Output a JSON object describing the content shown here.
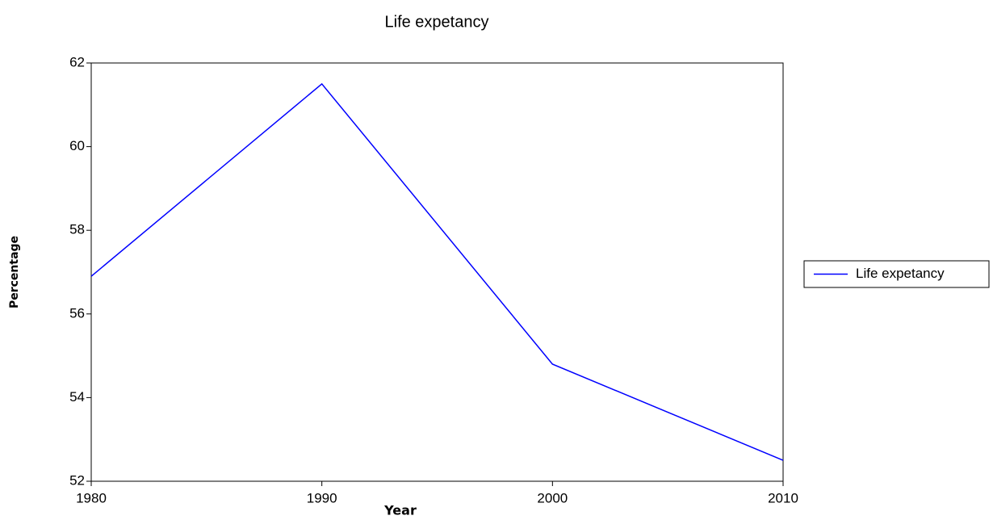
{
  "chart_data": {
    "type": "line",
    "title": "Life expetancy",
    "x_label": "Year",
    "y_label": "Percentage",
    "x": [
      1980,
      1990,
      2000,
      2010
    ],
    "series": [
      {
        "name": "Life expetancy",
        "color": "#0000ff",
        "values": [
          56.9,
          61.5,
          54.8,
          52.5
        ]
      }
    ],
    "xlim": [
      1980,
      2010
    ],
    "xticks": [
      1980,
      1990,
      2000,
      2010
    ],
    "ylim": [
      52,
      62
    ],
    "yticks": [
      52,
      54,
      56,
      58,
      60,
      62
    ],
    "grid": false,
    "legend": "right"
  }
}
